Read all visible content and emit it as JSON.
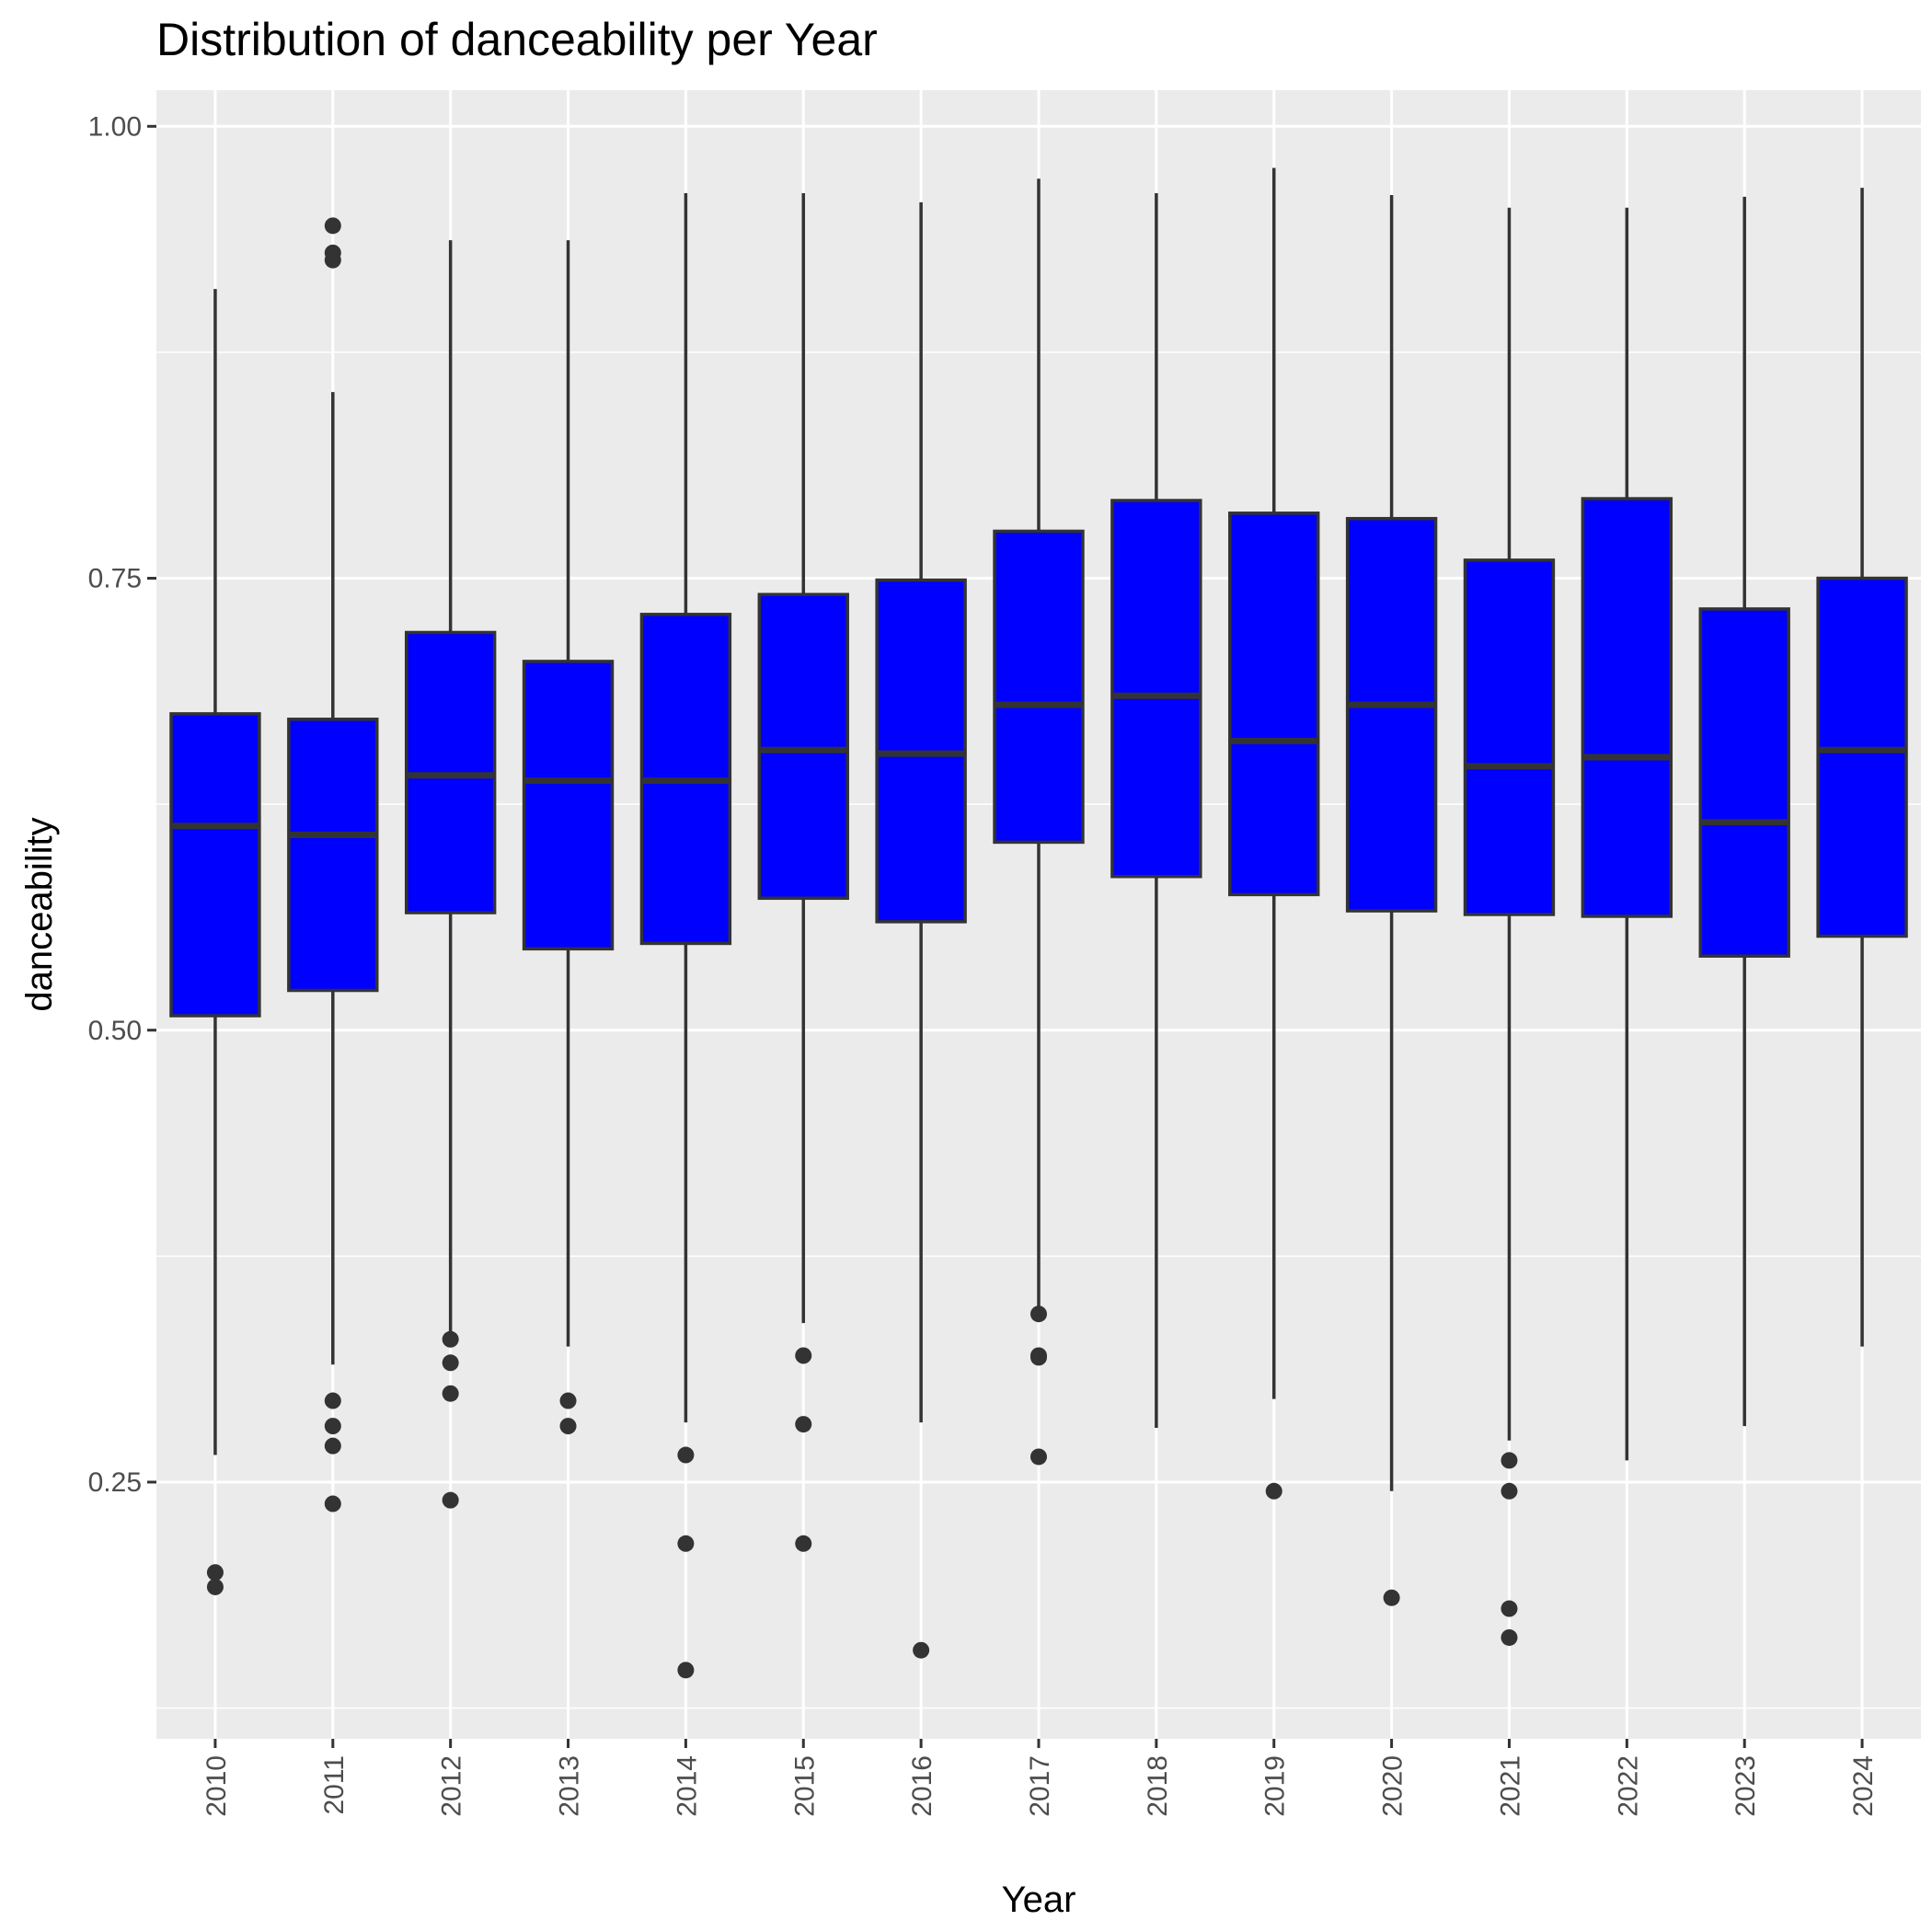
{
  "chart_data": {
    "type": "boxplot",
    "title": "Distribution of danceability per Year",
    "xlabel": "Year",
    "ylabel": "danceability",
    "ylim": [
      0.108,
      1.02
    ],
    "yticks": [
      0.25,
      0.5,
      0.75,
      1.0
    ],
    "ytick_labels": [
      "0.25",
      "0.50",
      "0.75",
      "1.00"
    ],
    "yminor_ticks": [
      0.125,
      0.375,
      0.625,
      0.875
    ],
    "grid": true,
    "box_fill": "#0000FF",
    "box_stroke": "#333333",
    "panel_background": "#EBEBEB",
    "grid_color": "#FFFFFF",
    "categories": [
      "2010",
      "2011",
      "2012",
      "2013",
      "2014",
      "2015",
      "2016",
      "2017",
      "2018",
      "2019",
      "2020",
      "2021",
      "2022",
      "2023",
      "2024"
    ],
    "boxes": [
      {
        "x": "2010",
        "min": 0.265,
        "q1": 0.508,
        "median": 0.613,
        "q3": 0.675,
        "max": 0.91,
        "outliers": [
          0.2,
          0.192
        ]
      },
      {
        "x": "2011",
        "min": 0.315,
        "q1": 0.522,
        "median": 0.608,
        "q3": 0.672,
        "max": 0.853,
        "outliers": [
          0.945,
          0.93,
          0.926,
          0.295,
          0.281,
          0.27,
          0.238
        ]
      },
      {
        "x": "2012",
        "min": 0.33,
        "q1": 0.565,
        "median": 0.641,
        "q3": 0.72,
        "max": 0.937,
        "outliers": [
          0.329,
          0.316,
          0.299,
          0.24
        ]
      },
      {
        "x": "2013",
        "min": 0.325,
        "q1": 0.545,
        "median": 0.638,
        "q3": 0.704,
        "max": 0.937,
        "outliers": [
          0.295,
          0.281
        ]
      },
      {
        "x": "2014",
        "min": 0.283,
        "q1": 0.548,
        "median": 0.638,
        "q3": 0.73,
        "max": 0.963,
        "outliers": [
          0.265,
          0.216,
          0.146
        ]
      },
      {
        "x": "2015",
        "min": 0.338,
        "q1": 0.573,
        "median": 0.655,
        "q3": 0.741,
        "max": 0.963,
        "outliers": [
          0.32,
          0.282,
          0.216
        ]
      },
      {
        "x": "2016",
        "min": 0.283,
        "q1": 0.56,
        "median": 0.653,
        "q3": 0.749,
        "max": 0.958,
        "outliers": [
          0.157
        ]
      },
      {
        "x": "2017",
        "min": 0.346,
        "q1": 0.604,
        "median": 0.68,
        "q3": 0.776,
        "max": 0.971,
        "outliers": [
          0.343,
          0.32,
          0.319,
          0.264
        ]
      },
      {
        "x": "2018",
        "min": 0.28,
        "q1": 0.585,
        "median": 0.685,
        "q3": 0.793,
        "max": 0.963,
        "outliers": []
      },
      {
        "x": "2019",
        "min": 0.296,
        "q1": 0.575,
        "median": 0.66,
        "q3": 0.786,
        "max": 0.977,
        "outliers": [
          0.245
        ]
      },
      {
        "x": "2020",
        "min": 0.245,
        "q1": 0.566,
        "median": 0.68,
        "q3": 0.783,
        "max": 0.962,
        "outliers": [
          0.186
        ]
      },
      {
        "x": "2021",
        "min": 0.273,
        "q1": 0.564,
        "median": 0.646,
        "q3": 0.76,
        "max": 0.955,
        "outliers": [
          0.262,
          0.245,
          0.18,
          0.164
        ]
      },
      {
        "x": "2022",
        "min": 0.262,
        "q1": 0.563,
        "median": 0.651,
        "q3": 0.794,
        "max": 0.955,
        "outliers": []
      },
      {
        "x": "2023",
        "min": 0.281,
        "q1": 0.541,
        "median": 0.615,
        "q3": 0.733,
        "max": 0.961,
        "outliers": []
      },
      {
        "x": "2024",
        "min": 0.325,
        "q1": 0.552,
        "median": 0.655,
        "q3": 0.75,
        "max": 0.966,
        "outliers": []
      }
    ]
  }
}
